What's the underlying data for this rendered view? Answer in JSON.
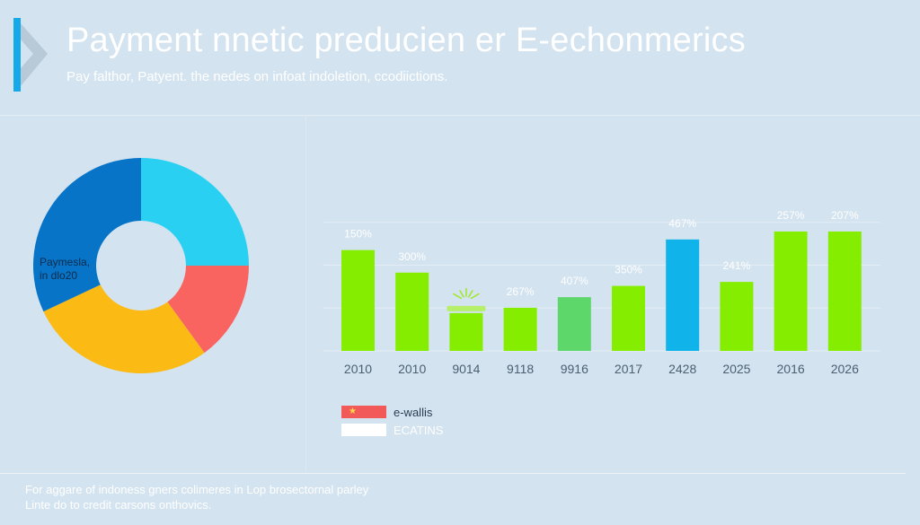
{
  "header": {
    "title": "Payment nnetic preducien er E-echonmerics",
    "subtitle": "Pay falthor, Patyent. the nedes on infoat indoletion, ccodiictions."
  },
  "donut": {
    "label_lines": [
      "Paymesla,",
      "in dlo20"
    ],
    "colors": [
      "#29d0f2",
      "#f96461",
      "#fbba14",
      "#0874c8"
    ],
    "fractions": [
      0.25,
      0.15,
      0.28,
      0.32
    ]
  },
  "chart_data": {
    "type": "bar",
    "categories": [
      "2010",
      "2010",
      "9014",
      "9118",
      "9916",
      "2017",
      "2428",
      "2025",
      "2016",
      "2026"
    ],
    "values": [
      152,
      118,
      57,
      65,
      81,
      98,
      168,
      104,
      180,
      180
    ],
    "data_labels": [
      "150%",
      "300%",
      "",
      "267%",
      "407%",
      "350%",
      "467%",
      "241%",
      "257%",
      "207%"
    ],
    "bar_colors": [
      "#85ed00",
      "#85ed00",
      "#85ed00",
      "#85ed00",
      "#5dd66a",
      "#85ed00",
      "#10b3ea",
      "#85ed00",
      "#85ed00",
      "#85ed00"
    ],
    "ylim": [
      0,
      230
    ],
    "grid": true,
    "legend": [
      {
        "label": "e-wallis",
        "color": "#f25a5a"
      },
      {
        "label": "ECATINS",
        "color": "#ffffff"
      }
    ]
  },
  "footer": {
    "line1": "For aggare of indoness gners colimeres in Lop brosectornal parley",
    "line2": "Linte do to credit carsons onthovics."
  }
}
